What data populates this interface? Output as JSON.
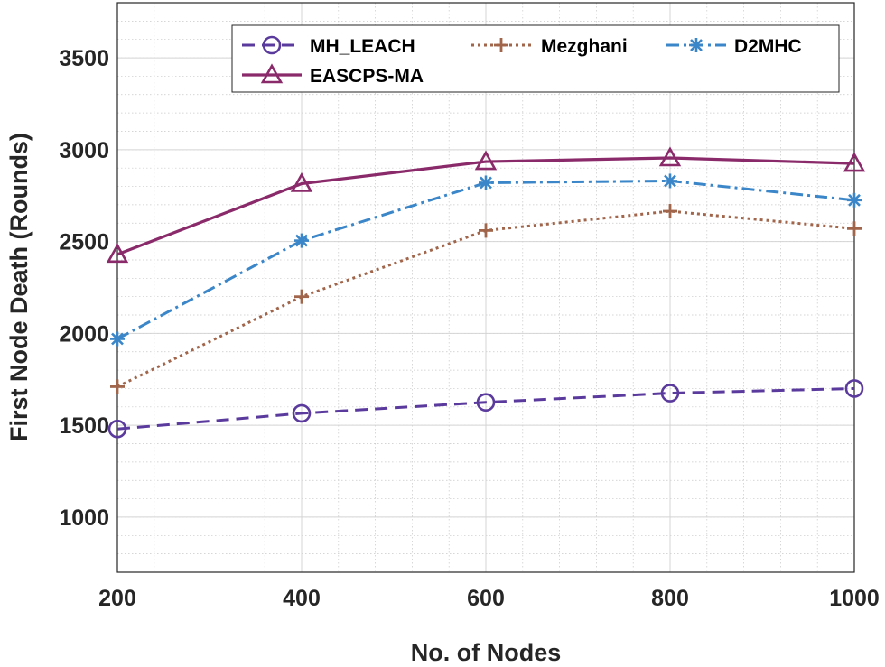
{
  "chart_data": {
    "type": "line",
    "title": "",
    "xlabel": "No. of Nodes",
    "ylabel": "First Node Death (Rounds)",
    "x": [
      200,
      400,
      600,
      800,
      1000
    ],
    "xlim": [
      200,
      1000
    ],
    "ylim": [
      700,
      3800
    ],
    "xticks": [
      200,
      400,
      600,
      800,
      1000
    ],
    "yticks": [
      1000,
      1500,
      2000,
      2500,
      3000,
      3500
    ],
    "grid": true,
    "minor_grid": true,
    "legend_position": "top",
    "series": [
      {
        "name": "MH_LEACH",
        "values": [
          1480,
          1565,
          1625,
          1675,
          1700
        ],
        "color": "#5b3a9e",
        "dash": "dashed",
        "marker": "circle"
      },
      {
        "name": "Mezghani",
        "values": [
          1710,
          2200,
          2560,
          2665,
          2570
        ],
        "color": "#a0654a",
        "dash": "dotted",
        "marker": "plus"
      },
      {
        "name": "D2MHC",
        "values": [
          1970,
          2505,
          2820,
          2830,
          2725
        ],
        "color": "#3a86c8",
        "dash": "dashdot",
        "marker": "asterisk"
      },
      {
        "name": "EASCPS-MA",
        "values": [
          2430,
          2815,
          2935,
          2955,
          2925
        ],
        "color": "#8a2a6a",
        "dash": "solid",
        "marker": "triangle"
      }
    ]
  }
}
